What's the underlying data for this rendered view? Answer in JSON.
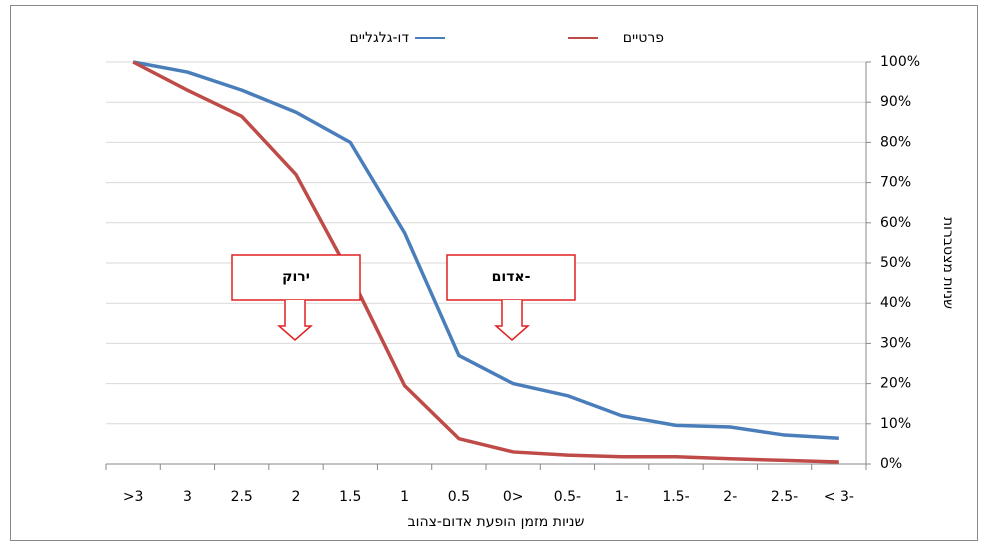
{
  "chart_data": {
    "type": "line",
    "x_label": "שניות מזמן הופעת אדום-צהוב",
    "y_label": "שניות מצטברות",
    "categories": [
      ">3",
      "3",
      "2.5",
      "2",
      "1.5",
      "1",
      "0.5",
      "0>",
      "0.5-",
      "1-",
      "1.5-",
      "2-",
      "2.5-",
      "< 3-"
    ],
    "series": [
      {
        "name": "דו-גלגליים",
        "color": "#4a7ebb",
        "values": [
          100,
          97.5,
          93,
          87.5,
          80,
          57.5,
          27,
          20,
          17,
          12,
          9.6,
          9.2,
          7.2,
          6.4
        ]
      },
      {
        "name": "פרטיים",
        "color": "#be4b48",
        "values": [
          100,
          93,
          86.5,
          72,
          47,
          19.5,
          6.3,
          3,
          2.2,
          1.8,
          1.8,
          1.3,
          0.9,
          0.5
        ]
      }
    ],
    "ylim": [
      0,
      100
    ],
    "yticks": [
      {
        "value": 0,
        "label": "0%"
      },
      {
        "value": 10,
        "label": "10%"
      },
      {
        "value": 20,
        "label": "20%"
      },
      {
        "value": 30,
        "label": "30%"
      },
      {
        "value": 40,
        "label": "40%"
      },
      {
        "value": 50,
        "label": "50%"
      },
      {
        "value": 60,
        "label": "60%"
      },
      {
        "value": 70,
        "label": "70%"
      },
      {
        "value": 80,
        "label": "80%"
      },
      {
        "value": 90,
        "label": "90%"
      },
      {
        "value": 100,
        "label": "100%"
      }
    ],
    "grid": true,
    "legend": "top",
    "annotations": [
      "ירוק",
      "אדום-"
    ]
  }
}
